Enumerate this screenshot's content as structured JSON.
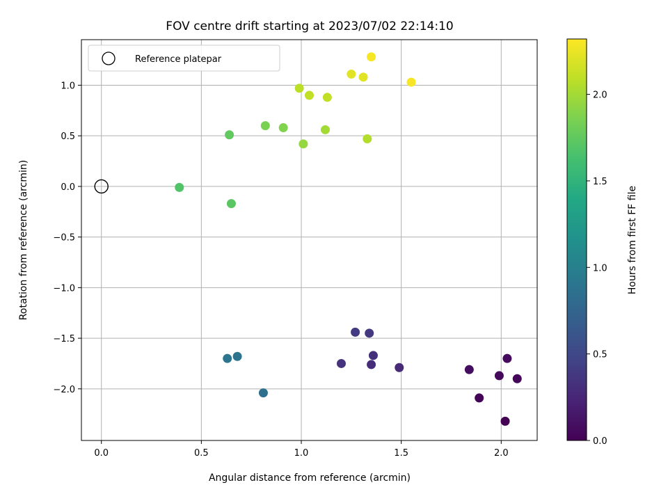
{
  "chart_data": {
    "type": "scatter",
    "title": "FOV centre drift starting at 2023/07/02 22:14:10",
    "xlabel": "Angular distance from reference (arcmin)",
    "ylabel": "Rotation from reference (arcmin)",
    "xlim": [
      -0.1,
      2.18
    ],
    "ylim": [
      -2.51,
      1.45
    ],
    "xticks": [
      0.0,
      0.5,
      1.0,
      1.5,
      2.0
    ],
    "xtick_labels": [
      "0.0",
      "0.5",
      "1.0",
      "1.5",
      "2.0"
    ],
    "yticks": [
      -2.0,
      -1.5,
      -1.0,
      -0.5,
      0.0,
      0.5,
      1.0
    ],
    "ytick_labels": [
      "−2.0",
      "−1.5",
      "−1.0",
      "−0.5",
      "0.0",
      "0.5",
      "1.0"
    ],
    "grid": true,
    "legend": {
      "position": "upper-left",
      "entries": [
        "Reference platepar"
      ]
    },
    "reference_point": {
      "x": 0.0,
      "y": 0.0,
      "marker": "hollow-circle"
    },
    "colorbar": {
      "label": "Hours from first FF file",
      "colormap": "viridis",
      "range": [
        0.0,
        2.32
      ],
      "ticks": [
        0.0,
        0.5,
        1.0,
        1.5,
        2.0
      ],
      "tick_labels": [
        "0.0",
        "0.5",
        "1.0",
        "1.5",
        "2.0"
      ]
    },
    "points": [
      {
        "x": 2.02,
        "y": -2.32,
        "hours": 0.0
      },
      {
        "x": 1.89,
        "y": -2.09,
        "hours": 0.02
      },
      {
        "x": 2.08,
        "y": -1.9,
        "hours": 0.04
      },
      {
        "x": 1.99,
        "y": -1.87,
        "hours": 0.05
      },
      {
        "x": 2.03,
        "y": -1.7,
        "hours": 0.06
      },
      {
        "x": 1.84,
        "y": -1.81,
        "hours": 0.08
      },
      {
        "x": 1.49,
        "y": -1.79,
        "hours": 0.28
      },
      {
        "x": 1.35,
        "y": -1.76,
        "hours": 0.3
      },
      {
        "x": 1.36,
        "y": -1.67,
        "hours": 0.32
      },
      {
        "x": 1.2,
        "y": -1.75,
        "hours": 0.34
      },
      {
        "x": 1.34,
        "y": -1.45,
        "hours": 0.38
      },
      {
        "x": 1.27,
        "y": -1.44,
        "hours": 0.4
      },
      {
        "x": 0.81,
        "y": -2.04,
        "hours": 0.85
      },
      {
        "x": 0.68,
        "y": -1.68,
        "hours": 0.88
      },
      {
        "x": 0.63,
        "y": -1.7,
        "hours": 0.9
      },
      {
        "x": 0.39,
        "y": -0.01,
        "hours": 1.68
      },
      {
        "x": 0.65,
        "y": -0.17,
        "hours": 1.72
      },
      {
        "x": 0.64,
        "y": 0.51,
        "hours": 1.75
      },
      {
        "x": 0.82,
        "y": 0.6,
        "hours": 1.85
      },
      {
        "x": 0.91,
        "y": 0.58,
        "hours": 1.88
      },
      {
        "x": 1.01,
        "y": 0.42,
        "hours": 1.95
      },
      {
        "x": 1.12,
        "y": 0.56,
        "hours": 2.0
      },
      {
        "x": 1.33,
        "y": 0.47,
        "hours": 2.05
      },
      {
        "x": 0.99,
        "y": 0.97,
        "hours": 2.08
      },
      {
        "x": 1.04,
        "y": 0.9,
        "hours": 2.1
      },
      {
        "x": 1.13,
        "y": 0.88,
        "hours": 2.1
      },
      {
        "x": 1.25,
        "y": 1.11,
        "hours": 2.22
      },
      {
        "x": 1.31,
        "y": 1.08,
        "hours": 2.22
      },
      {
        "x": 1.35,
        "y": 1.28,
        "hours": 2.3
      },
      {
        "x": 1.55,
        "y": 1.03,
        "hours": 2.3
      }
    ]
  }
}
